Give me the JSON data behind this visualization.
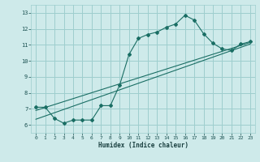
{
  "xlabel": "Humidex (Indice chaleur)",
  "bg_color": "#ceeaea",
  "grid_color": "#9ecece",
  "line_color": "#1a6e64",
  "xlim": [
    -0.5,
    23.5
  ],
  "ylim": [
    5.5,
    13.5
  ],
  "xticks": [
    0,
    1,
    2,
    3,
    4,
    5,
    6,
    7,
    8,
    9,
    10,
    11,
    12,
    13,
    14,
    15,
    16,
    17,
    18,
    19,
    20,
    21,
    22,
    23
  ],
  "yticks": [
    6,
    7,
    8,
    9,
    10,
    11,
    12,
    13
  ],
  "curve1_x": [
    0,
    1,
    2,
    3,
    4,
    5,
    6,
    7,
    8,
    9,
    10,
    11,
    12,
    13,
    14,
    15,
    16,
    17,
    18,
    19,
    20,
    21,
    22,
    23
  ],
  "curve1_y": [
    7.1,
    7.1,
    6.4,
    6.1,
    6.3,
    6.3,
    6.3,
    7.2,
    7.2,
    8.5,
    10.4,
    11.4,
    11.65,
    11.8,
    12.1,
    12.3,
    12.85,
    12.55,
    11.7,
    11.1,
    10.75,
    10.65,
    11.05,
    11.2
  ],
  "curve2_x": [
    0,
    23
  ],
  "curve2_y": [
    6.9,
    11.15
  ],
  "curve3_x": [
    0,
    23
  ],
  "curve3_y": [
    6.35,
    11.05
  ]
}
